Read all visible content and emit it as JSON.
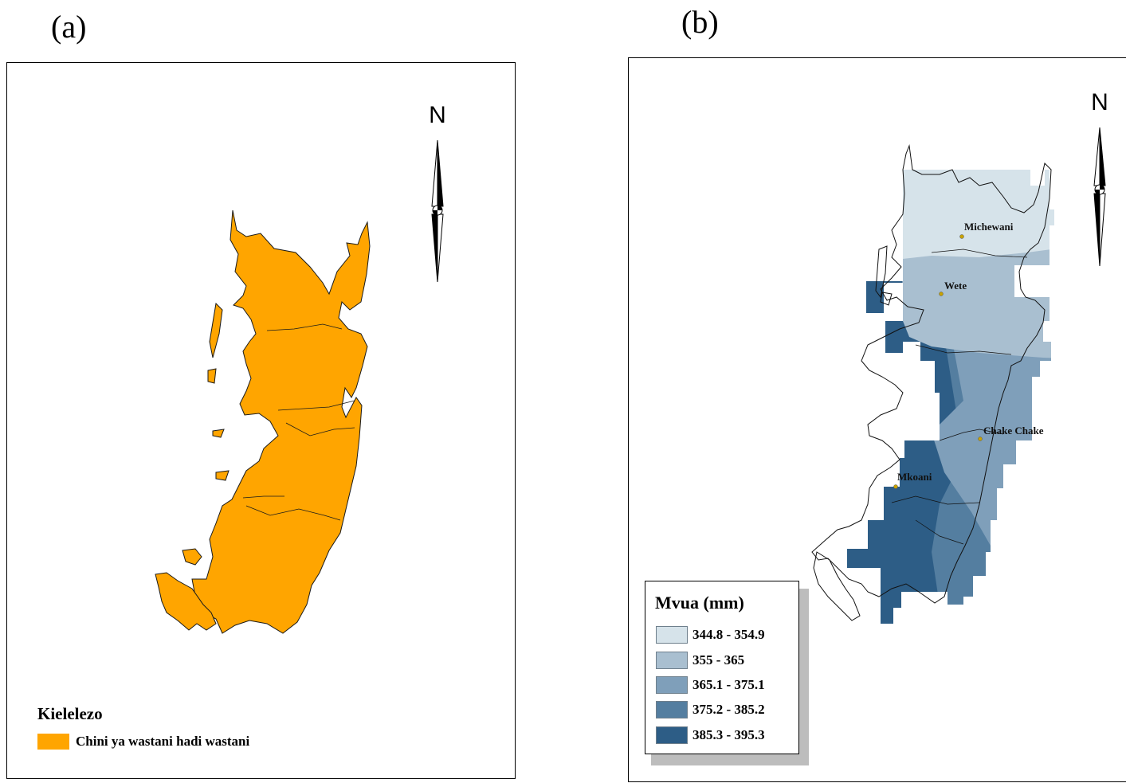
{
  "panels": {
    "a": {
      "label": "(a)",
      "north_letter": "N",
      "legend": {
        "title": "Kielelezo",
        "items": [
          {
            "label": "Chini ya wastani hadi wastani",
            "color": "#ffa500"
          }
        ]
      }
    },
    "b": {
      "label": "(b)",
      "north_letter": "N",
      "towns": [
        "Michewani",
        "Wete",
        "Chake Chake",
        "Mkoani"
      ],
      "legend": {
        "title": "Mvua (mm)",
        "items": [
          {
            "label": "344.8 - 354.9",
            "color": "#d6e3ea"
          },
          {
            "label": "355 - 365",
            "color": "#a9bfd0"
          },
          {
            "label": "365.1 - 375.1",
            "color": "#7f9fba"
          },
          {
            "label": "375.2 - 385.2",
            "color": "#547ea0"
          },
          {
            "label": "385.3 - 395.3",
            "color": "#2d5d86"
          }
        ]
      }
    }
  }
}
